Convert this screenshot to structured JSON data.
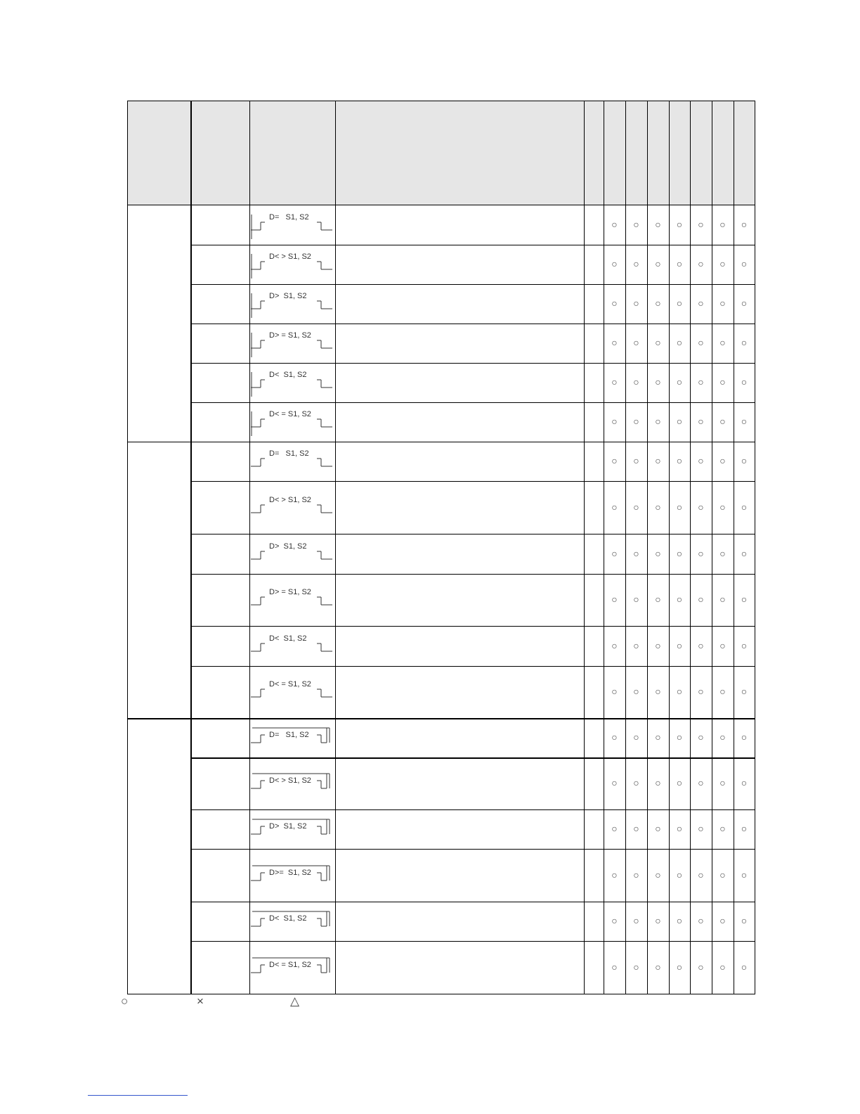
{
  "table": {
    "groups": [
      {
        "style": "rail",
        "rows": [
          {
            "symbol": "D=   S1, S2",
            "marks": [
              "○",
              "○",
              "○",
              "○",
              "○",
              "○",
              "○"
            ]
          },
          {
            "symbol": "D< > S1, S2",
            "marks": [
              "○",
              "○",
              "○",
              "○",
              "○",
              "○",
              "○"
            ]
          },
          {
            "symbol": "D>  S1, S2",
            "marks": [
              "○",
              "○",
              "○",
              "○",
              "○",
              "○",
              "○"
            ]
          },
          {
            "symbol": "D> = S1, S2",
            "marks": [
              "○",
              "○",
              "○",
              "○",
              "○",
              "○",
              "○"
            ]
          },
          {
            "symbol": "D<  S1, S2",
            "marks": [
              "○",
              "○",
              "○",
              "○",
              "○",
              "○",
              "○"
            ]
          },
          {
            "symbol": "D< = S1, S2",
            "marks": [
              "○",
              "○",
              "○",
              "○",
              "○",
              "○",
              "○"
            ]
          }
        ]
      },
      {
        "style": "series",
        "rows": [
          {
            "symbol": "D=   S1, S2",
            "marks": [
              "○",
              "○",
              "○",
              "○",
              "○",
              "○",
              "○"
            ]
          },
          {
            "symbol": "D< > S1, S2",
            "marks": [
              "○",
              "○",
              "○",
              "○",
              "○",
              "○",
              "○"
            ]
          },
          {
            "symbol": "D>  S1, S2",
            "marks": [
              "○",
              "○",
              "○",
              "○",
              "○",
              "○",
              "○"
            ]
          },
          {
            "symbol": "D> = S1, S2",
            "marks": [
              "○",
              "○",
              "○",
              "○",
              "○",
              "○",
              "○"
            ]
          },
          {
            "symbol": "D<  S1, S2",
            "marks": [
              "○",
              "○",
              "○",
              "○",
              "○",
              "○",
              "○"
            ]
          },
          {
            "symbol": "D< = S1, S2",
            "marks": [
              "○",
              "○",
              "○",
              "○",
              "○",
              "○",
              "○"
            ]
          }
        ]
      },
      {
        "style": "parallel",
        "rows": [
          {
            "symbol": "D=   S1, S2",
            "marks": [
              "○",
              "○",
              "○",
              "○",
              "○",
              "○",
              "○"
            ]
          },
          {
            "symbol": "D< > S1, S2",
            "marks": [
              "○",
              "○",
              "○",
              "○",
              "○",
              "○",
              "○"
            ]
          },
          {
            "symbol": "D>  S1, S2",
            "marks": [
              "○",
              "○",
              "○",
              "○",
              "○",
              "○",
              "○"
            ]
          },
          {
            "symbol": "D>=  S1, S2",
            "marks": [
              "○",
              "○",
              "○",
              "○",
              "○",
              "○",
              "○"
            ]
          },
          {
            "symbol": "D<  S1, S2",
            "marks": [
              "○",
              "○",
              "○",
              "○",
              "○",
              "○",
              "○"
            ]
          },
          {
            "symbol": "D< = S1, S2",
            "marks": [
              "○",
              "○",
              "○",
              "○",
              "○",
              "○",
              "○"
            ]
          }
        ]
      }
    ],
    "header_color": "#e6e6e6"
  },
  "legend": {
    "circle": "○",
    "cross": "×",
    "triangle": "△"
  }
}
